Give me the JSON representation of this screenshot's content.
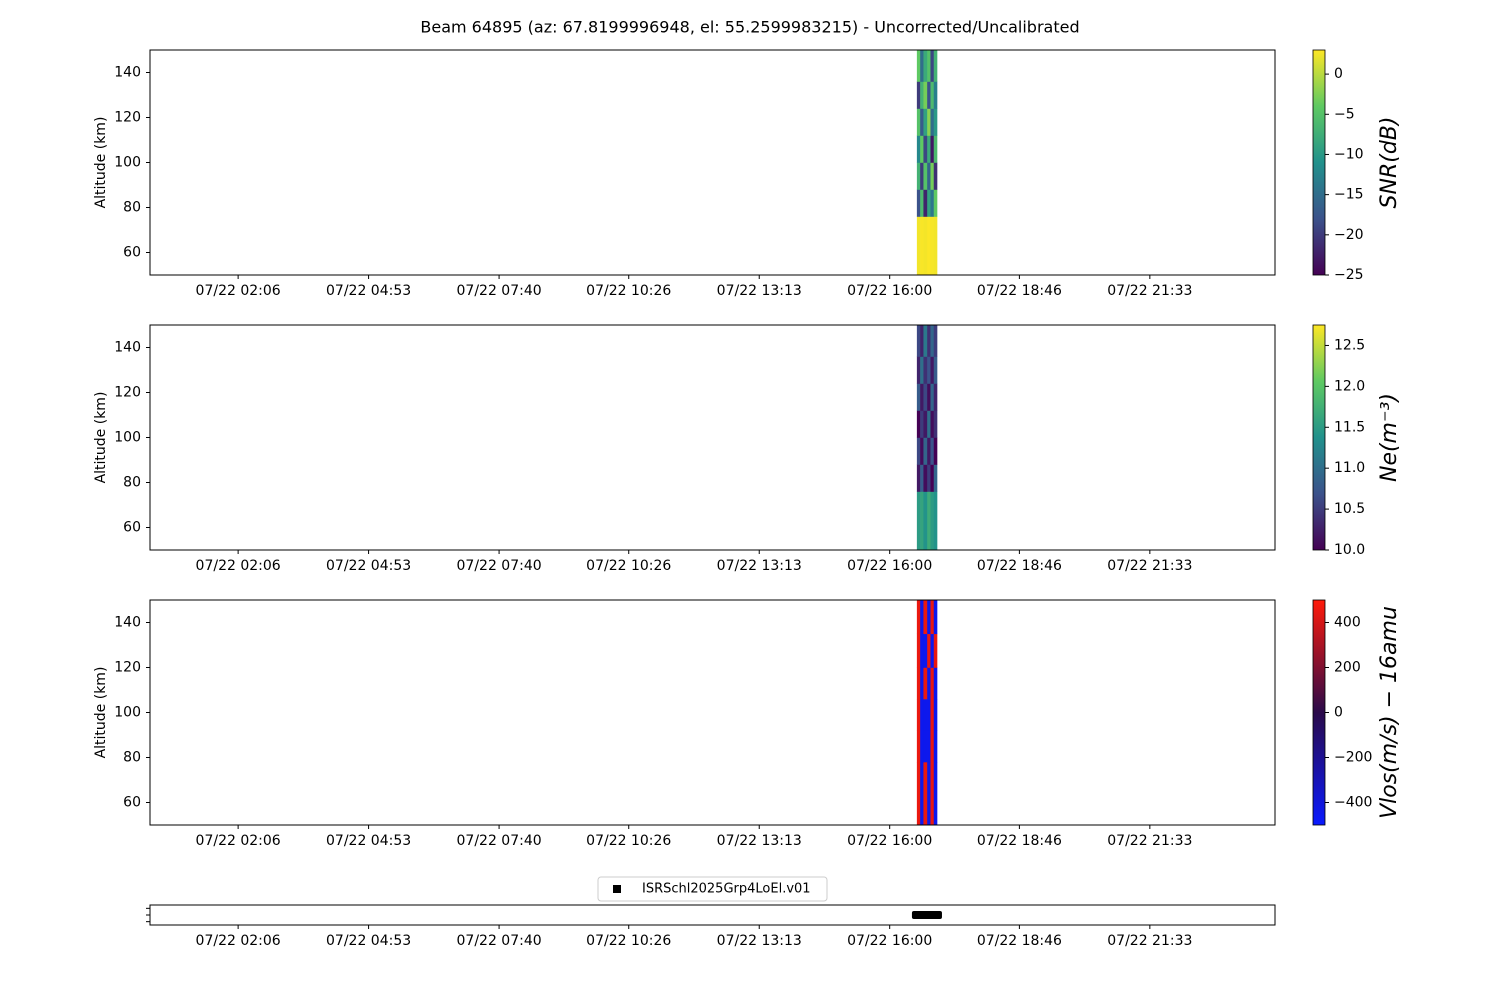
{
  "chart_data": [
    {
      "type": "heatmap",
      "title": "Beam 64895 (az: 67.8199996948, el: 55.2599983215) - Uncorrected/Uncalibrated",
      "ylabel": "Altitude (km)",
      "clabel": "SNR(dB)",
      "xlim": [
        0.22,
        24.22
      ],
      "xticks": [
        {
          "value": 2.1,
          "label": "07/22 02:06"
        },
        {
          "value": 4.883,
          "label": "07/22 04:53"
        },
        {
          "value": 7.667,
          "label": "07/22 07:40"
        },
        {
          "value": 10.433,
          "label": "07/22 10:26"
        },
        {
          "value": 13.217,
          "label": "07/22 13:13"
        },
        {
          "value": 16.0,
          "label": "07/22 16:00"
        },
        {
          "value": 18.767,
          "label": "07/22 18:46"
        },
        {
          "value": 21.55,
          "label": "07/22 21:33"
        }
      ],
      "ylim": [
        50,
        150
      ],
      "yticks": [
        60,
        80,
        100,
        120,
        140
      ],
      "x": [
        16.58,
        16.65,
        16.72,
        16.8,
        16.87,
        16.94,
        17.01
      ],
      "y": [
        50,
        76,
        88,
        100,
        112,
        124,
        136,
        150
      ],
      "values": [
        [
          2.5,
          2.8,
          2.6,
          2.9,
          2.7,
          2.5
        ],
        [
          -18,
          -6,
          -22,
          -9,
          -14,
          -4
        ],
        [
          -7,
          -20,
          -5,
          -16,
          -3,
          -21
        ],
        [
          -12,
          -4,
          -19,
          -8,
          -23,
          -6
        ],
        [
          -5,
          -17,
          -9,
          -2,
          -15,
          -10
        ],
        [
          -20,
          -7,
          -3,
          -18,
          -6,
          -13
        ],
        [
          -4,
          -15,
          -8,
          -5,
          -19,
          -7
        ]
      ],
      "clim": [
        -25,
        3
      ],
      "cticks": [
        {
          "value": -25,
          "label": "−25"
        },
        {
          "value": -20,
          "label": "−20"
        },
        {
          "value": -15,
          "label": "−15"
        },
        {
          "value": -10,
          "label": "−10"
        },
        {
          "value": -5,
          "label": "−5"
        },
        0
      ],
      "colormap": [
        "#440154",
        "#3b528b",
        "#21918c",
        "#5ec962",
        "#fde725"
      ]
    },
    {
      "type": "heatmap",
      "ylabel": "Altitude (km)",
      "clabel": "Ne(m⁻³)",
      "xlim": [
        0.22,
        24.22
      ],
      "xticks": [
        {
          "value": 2.1,
          "label": "07/22 02:06"
        },
        {
          "value": 4.883,
          "label": "07/22 04:53"
        },
        {
          "value": 7.667,
          "label": "07/22 07:40"
        },
        {
          "value": 10.433,
          "label": "07/22 10:26"
        },
        {
          "value": 13.217,
          "label": "07/22 13:13"
        },
        {
          "value": 16.0,
          "label": "07/22 16:00"
        },
        {
          "value": 18.767,
          "label": "07/22 18:46"
        },
        {
          "value": 21.55,
          "label": "07/22 21:33"
        }
      ],
      "ylim": [
        50,
        150
      ],
      "yticks": [
        60,
        80,
        100,
        120,
        140
      ],
      "x": [
        16.58,
        16.65,
        16.72,
        16.8,
        16.87,
        16.94,
        17.01
      ],
      "y": [
        50,
        76,
        88,
        100,
        112,
        124,
        136,
        150
      ],
      "values": [
        [
          11.5,
          11.6,
          11.4,
          11.7,
          11.5,
          11.4
        ],
        [
          10.2,
          10.8,
          10.1,
          10.5,
          10.0,
          10.9
        ],
        [
          10.6,
          10.1,
          10.9,
          10.2,
          10.7,
          10.0
        ],
        [
          10.0,
          10.5,
          10.2,
          11.0,
          10.1,
          10.4
        ],
        [
          10.8,
          10.2,
          10.6,
          10.1,
          10.9,
          10.3
        ],
        [
          10.3,
          11.0,
          10.4,
          10.7,
          10.2,
          10.8
        ],
        [
          10.6,
          10.3,
          11.1,
          10.4,
          10.9,
          10.5
        ]
      ],
      "clim": [
        10.0,
        12.75
      ],
      "cticks": [
        {
          "value": 10.0,
          "label": "10.0"
        },
        {
          "value": 10.5,
          "label": "10.5"
        },
        {
          "value": 11.0,
          "label": "11.0"
        },
        {
          "value": 11.5,
          "label": "11.5"
        },
        {
          "value": 12.0,
          "label": "12.0"
        },
        12.5
      ],
      "colormap": [
        "#440154",
        "#3b528b",
        "#21918c",
        "#5ec962",
        "#fde725"
      ]
    },
    {
      "type": "heatmap",
      "ylabel": "Altitude (km)",
      "clabel": "Vlos(m/s) − 16amu",
      "xlim": [
        0.22,
        24.22
      ],
      "xticks": [
        {
          "value": 2.1,
          "label": "07/22 02:06"
        },
        {
          "value": 4.883,
          "label": "07/22 04:53"
        },
        {
          "value": 7.667,
          "label": "07/22 07:40"
        },
        {
          "value": 10.433,
          "label": "07/22 10:26"
        },
        {
          "value": 13.217,
          "label": "07/22 13:13"
        },
        {
          "value": 16.0,
          "label": "07/22 16:00"
        },
        {
          "value": 18.767,
          "label": "07/22 18:46"
        },
        {
          "value": 21.55,
          "label": "07/22 21:33"
        }
      ],
      "ylim": [
        50,
        150
      ],
      "yticks": [
        60,
        80,
        100,
        120,
        140
      ],
      "x": [
        16.58,
        16.65,
        16.72,
        16.8,
        16.87,
        16.94,
        17.01
      ],
      "y": [
        50,
        78,
        92,
        106,
        120,
        135,
        150
      ],
      "values": [
        [
          450,
          -450,
          450,
          -450,
          450,
          -450
        ],
        [
          450,
          -450,
          -450,
          -450,
          450,
          -450
        ],
        [
          450,
          -450,
          -450,
          -450,
          450,
          -450
        ],
        [
          450,
          -450,
          450,
          -450,
          450,
          -450
        ],
        [
          450,
          -450,
          -450,
          450,
          -450,
          450
        ],
        [
          450,
          -450,
          450,
          -450,
          450,
          -450
        ]
      ],
      "clim": [
        -500,
        500
      ],
      "cticks": [
        {
          "value": -400,
          "label": "−400"
        },
        {
          "value": -200,
          "label": "−200"
        },
        0,
        200,
        400
      ],
      "colormap": [
        "#0a1aff",
        "#2a0a4a",
        "#ff1a0a"
      ]
    },
    {
      "type": "scatter",
      "xlim": [
        0.22,
        24.22
      ],
      "xticks": [
        {
          "value": 2.1,
          "label": "07/22 02:06"
        },
        {
          "value": 4.883,
          "label": "07/22 04:53"
        },
        {
          "value": 7.667,
          "label": "07/22 07:40"
        },
        {
          "value": 10.433,
          "label": "07/22 10:26"
        },
        {
          "value": 13.217,
          "label": "07/22 13:13"
        },
        {
          "value": 16.0,
          "label": "07/22 16:00"
        },
        {
          "value": 18.767,
          "label": "07/22 18:46"
        },
        {
          "value": 21.55,
          "label": "07/22 21:33"
        }
      ],
      "ylim": [
        -0.06,
        0.06
      ],
      "yticks": [
        {
          "value": -0.04,
          "label": null
        },
        {
          "value": 0,
          "label": null
        },
        {
          "value": 0.04,
          "label": null
        }
      ],
      "x": [
        16.56,
        16.62,
        16.68,
        16.74,
        16.8,
        16.86,
        16.92,
        16.98,
        17.03
      ],
      "series": [
        {
          "name": "ISRSchl2025Grp4LoEl.v01",
          "color": "#000000",
          "values": [
            0,
            0,
            0,
            0,
            0,
            0,
            0,
            0,
            0
          ]
        }
      ],
      "legend": "upper center"
    }
  ]
}
